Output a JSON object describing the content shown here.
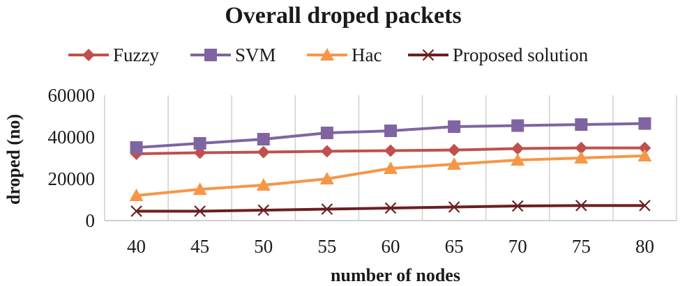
{
  "chart_data": {
    "type": "line",
    "title": "Overall droped packets",
    "xlabel": "number of nodes",
    "ylabel": "droped (no)",
    "x": [
      40,
      45,
      50,
      55,
      60,
      65,
      70,
      75,
      80
    ],
    "ylim": [
      0,
      60000
    ],
    "yticks": [
      0,
      20000,
      40000,
      60000
    ],
    "grid": "vertical",
    "legend_position": "top",
    "series": [
      {
        "name": "Fuzzy",
        "color": "#c0504d",
        "marker": "diamond",
        "values": [
          32000,
          32500,
          32800,
          33200,
          33500,
          33800,
          34500,
          34800,
          34800
        ]
      },
      {
        "name": "SVM",
        "color": "#8064a2",
        "marker": "square",
        "values": [
          35000,
          37000,
          39000,
          42000,
          43000,
          45000,
          45500,
          46000,
          46500
        ]
      },
      {
        "name": "Hac",
        "color": "#f79646",
        "marker": "triangle",
        "values": [
          12000,
          15000,
          17000,
          20000,
          25000,
          27000,
          29000,
          30000,
          31000
        ]
      },
      {
        "name": "Proposed solution",
        "color": "#6b1f1f",
        "marker": "x",
        "values": [
          4500,
          4500,
          5000,
          5500,
          6000,
          6500,
          7000,
          7200,
          7200
        ]
      }
    ]
  }
}
